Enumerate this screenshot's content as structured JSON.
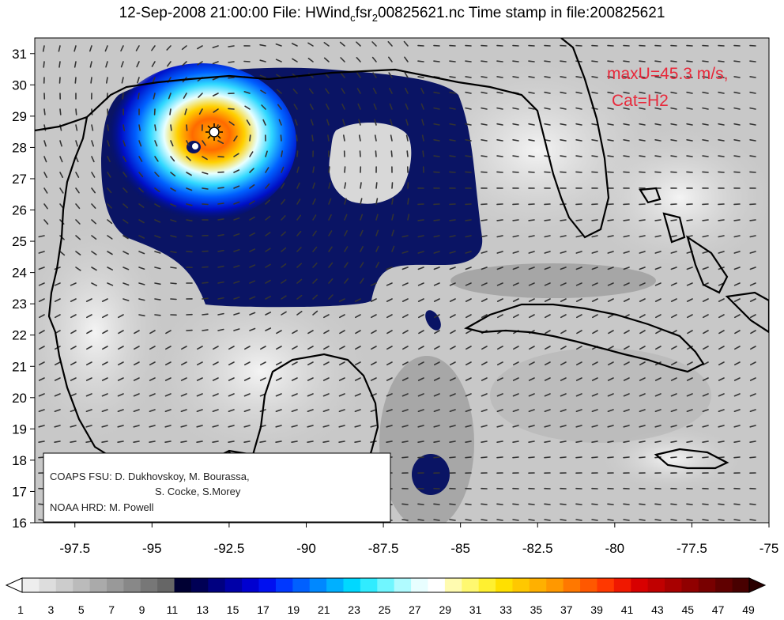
{
  "chart_data": {
    "type": "heatmap",
    "title_parts": {
      "prefix": "12-Sep-2008 21:00:00 File: HWind",
      "sub1": "c",
      "mid": "fsr",
      "sub2": "2",
      "suffix": "00825621.nc Time stamp in file:200825621"
    },
    "x_axis": {
      "range": [
        -98.8,
        -75
      ],
      "ticks": [
        -97.5,
        -95,
        -92.5,
        -90,
        -87.5,
        -85,
        -82.5,
        -80,
        -77.5,
        -75
      ],
      "tick_labels": [
        "-97.5",
        "-95",
        "-92.5",
        "-90",
        "-87.5",
        "-85",
        "-82.5",
        "-80",
        "-77.5",
        "-75"
      ]
    },
    "y_axis": {
      "range": [
        16,
        31.5
      ],
      "ticks": [
        16,
        17,
        18,
        19,
        20,
        21,
        22,
        23,
        24,
        25,
        26,
        27,
        28,
        29,
        30,
        31
      ],
      "tick_labels": [
        "16",
        "17",
        "18",
        "19",
        "20",
        "21",
        "22",
        "23",
        "24",
        "25",
        "26",
        "27",
        "28",
        "29",
        "30",
        "31"
      ]
    },
    "annotation": {
      "line1": "maxU=45.3 m/s,",
      "line2": "Cat=H2",
      "color": "#e8283a"
    },
    "storm_center": {
      "lon": -92.6,
      "lat": 28.5,
      "eye_lon": -93.2,
      "eye_lat": 27.95
    },
    "colorbar": {
      "values": [
        1,
        3,
        5,
        7,
        9,
        11,
        13,
        15,
        17,
        19,
        21,
        23,
        25,
        27,
        29,
        31,
        33,
        35,
        37,
        39,
        41,
        43,
        45,
        47,
        49
      ],
      "labels": [
        "1",
        "3",
        "5",
        "7",
        "9",
        "11",
        "13",
        "15",
        "17",
        "19",
        "21",
        "23",
        "25",
        "27",
        "29",
        "31",
        "33",
        "35",
        "37",
        "39",
        "41",
        "43",
        "45",
        "47",
        "49"
      ],
      "colors": [
        "#eeeeee",
        "#dddddd",
        "#cccccc",
        "#bbbbbb",
        "#aaaaaa",
        "#999999",
        "#888888",
        "#777777",
        "#666666",
        "#000033",
        "#000055",
        "#000080",
        "#0000a8",
        "#0000d0",
        "#0010f0",
        "#0038ff",
        "#0060ff",
        "#0088ff",
        "#00b0ff",
        "#00d8ff",
        "#30ecff",
        "#70f6ff",
        "#b0fbff",
        "#e8feff",
        "#ffffff",
        "#fffbb0",
        "#fff870",
        "#fff030",
        "#ffe000",
        "#ffc800",
        "#ffb000",
        "#ff9800",
        "#ff7800",
        "#ff5800",
        "#ff3800",
        "#f01800",
        "#d80000",
        "#c00000",
        "#a80000",
        "#900000",
        "#780000",
        "#600000",
        "#480000"
      ],
      "under_color": "#ffffff",
      "over_color": "#2a0000"
    },
    "credits": {
      "line1": "COAPS FSU: D. Dukhovskoy, M. Bourassa,",
      "line2": "S. Cocke, S.Morey",
      "line3": "NOAA HRD:  M. Powell"
    }
  }
}
